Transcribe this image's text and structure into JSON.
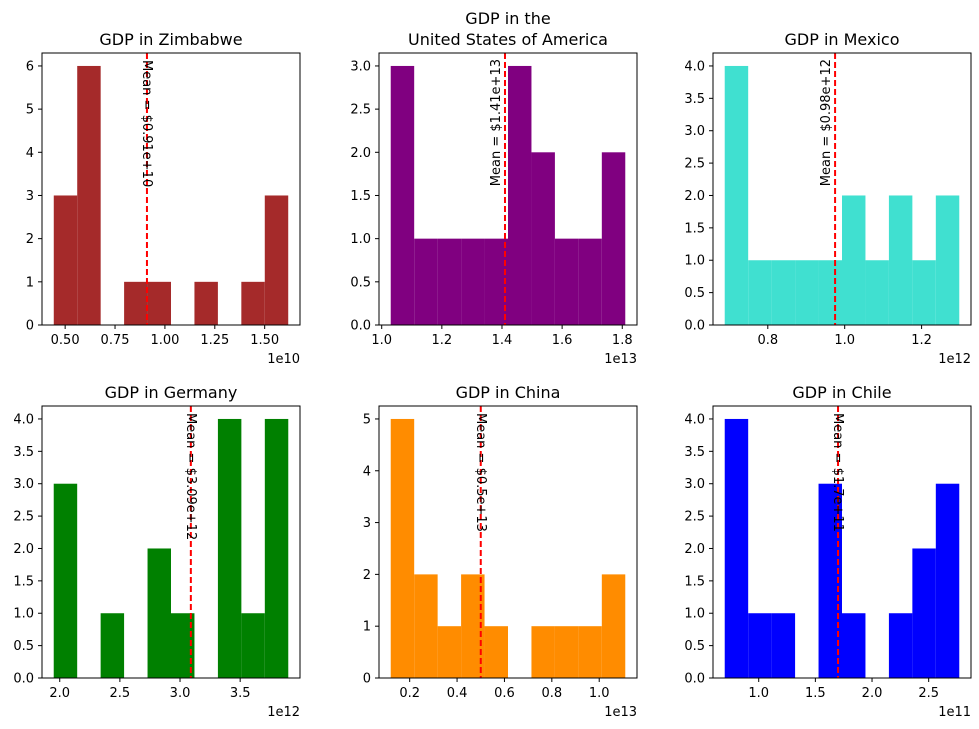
{
  "chart_data": [
    {
      "type": "bar",
      "title": "GDP in Zimbabwe",
      "color": "#a52a2a",
      "x_offset": "1e10",
      "bins": [
        {
          "x0": 0.443,
          "x1": 0.5605,
          "count": 3
        },
        {
          "x0": 0.5605,
          "x1": 0.678,
          "count": 6
        },
        {
          "x0": 0.678,
          "x1": 0.7955,
          "count": 0
        },
        {
          "x0": 0.7955,
          "x1": 0.913,
          "count": 1
        },
        {
          "x0": 0.913,
          "x1": 1.0305,
          "count": 1
        },
        {
          "x0": 1.0305,
          "x1": 1.148,
          "count": 0
        },
        {
          "x0": 1.148,
          "x1": 1.2655,
          "count": 1
        },
        {
          "x0": 1.2655,
          "x1": 1.383,
          "count": 0
        },
        {
          "x0": 1.383,
          "x1": 1.5005,
          "count": 1
        },
        {
          "x0": 1.5005,
          "x1": 1.618,
          "count": 3
        }
      ],
      "mean": 0.91,
      "mean_label": "Mean = $0.91e+10",
      "xlim": [
        0.384,
        1.677
      ],
      "ylim": [
        0,
        6.3
      ],
      "xticks": [
        0.5,
        0.75,
        1.0,
        1.25,
        1.5
      ],
      "xtick_labels": [
        "0.50",
        "0.75",
        "1.00",
        "1.25",
        "1.50"
      ],
      "yticks": [
        0,
        1,
        2,
        3,
        4,
        5,
        6
      ],
      "ytick_labels": [
        "0",
        "1",
        "2",
        "3",
        "4",
        "5",
        "6"
      ]
    },
    {
      "type": "bar",
      "title": "GDP in the\nUnited States of America",
      "color": "#800080",
      "x_offset": "1e13",
      "bins": [
        {
          "x0": 1.03,
          "x1": 1.108,
          "count": 3
        },
        {
          "x0": 1.108,
          "x1": 1.186,
          "count": 1
        },
        {
          "x0": 1.186,
          "x1": 1.264,
          "count": 1
        },
        {
          "x0": 1.264,
          "x1": 1.342,
          "count": 1
        },
        {
          "x0": 1.342,
          "x1": 1.42,
          "count": 1
        },
        {
          "x0": 1.42,
          "x1": 1.498,
          "count": 3
        },
        {
          "x0": 1.498,
          "x1": 1.576,
          "count": 2
        },
        {
          "x0": 1.576,
          "x1": 1.654,
          "count": 1
        },
        {
          "x0": 1.654,
          "x1": 1.732,
          "count": 1
        },
        {
          "x0": 1.732,
          "x1": 1.81,
          "count": 2
        }
      ],
      "mean": 1.41,
      "mean_label": "Mean = $1.41e+13",
      "xlim": [
        0.991,
        1.849
      ],
      "ylim": [
        0,
        3.15
      ],
      "xticks": [
        1.0,
        1.2,
        1.4,
        1.6,
        1.8
      ],
      "xtick_labels": [
        "1.0",
        "1.2",
        "1.4",
        "1.6",
        "1.8"
      ],
      "yticks": [
        0,
        0.5,
        1,
        1.5,
        2,
        2.5,
        3
      ],
      "ytick_labels": [
        "0.0",
        "0.5",
        "1.0",
        "1.5",
        "2.0",
        "2.5",
        "3.0"
      ]
    },
    {
      "type": "bar",
      "title": "GDP in Mexico",
      "color": "#40e0d0",
      "x_offset": "1e12",
      "bins": [
        {
          "x0": 0.688,
          "x1": 0.749,
          "count": 4
        },
        {
          "x0": 0.749,
          "x1": 0.81,
          "count": 1
        },
        {
          "x0": 0.81,
          "x1": 0.871,
          "count": 1
        },
        {
          "x0": 0.871,
          "x1": 0.932,
          "count": 1
        },
        {
          "x0": 0.932,
          "x1": 0.993,
          "count": 1
        },
        {
          "x0": 0.993,
          "x1": 1.054,
          "count": 2
        },
        {
          "x0": 1.054,
          "x1": 1.115,
          "count": 1
        },
        {
          "x0": 1.115,
          "x1": 1.176,
          "count": 2
        },
        {
          "x0": 1.176,
          "x1": 1.237,
          "count": 1
        },
        {
          "x0": 1.237,
          "x1": 1.298,
          "count": 2
        }
      ],
      "mean": 0.975,
      "mean_label": "Mean = $0.98e+12",
      "xlim": [
        0.6575,
        1.3285
      ],
      "ylim": [
        0,
        4.2
      ],
      "xticks": [
        0.8,
        1.0,
        1.2
      ],
      "xtick_labels": [
        "0.8",
        "1.0",
        "1.2"
      ],
      "yticks": [
        0,
        0.5,
        1,
        1.5,
        2,
        2.5,
        3,
        3.5,
        4
      ],
      "ytick_labels": [
        "0.0",
        "0.5",
        "1.0",
        "1.5",
        "2.0",
        "2.5",
        "3.0",
        "3.5",
        "4.0"
      ]
    },
    {
      "type": "bar",
      "title": "GDP in Germany",
      "color": "#008000",
      "x_offset": "1e12",
      "bins": [
        {
          "x0": 1.95,
          "x1": 2.145,
          "count": 3
        },
        {
          "x0": 2.145,
          "x1": 2.34,
          "count": 0
        },
        {
          "x0": 2.34,
          "x1": 2.535,
          "count": 1
        },
        {
          "x0": 2.535,
          "x1": 2.73,
          "count": 0
        },
        {
          "x0": 2.73,
          "x1": 2.925,
          "count": 2
        },
        {
          "x0": 2.925,
          "x1": 3.12,
          "count": 1
        },
        {
          "x0": 3.12,
          "x1": 3.315,
          "count": 0
        },
        {
          "x0": 3.315,
          "x1": 3.51,
          "count": 4
        },
        {
          "x0": 3.51,
          "x1": 3.705,
          "count": 1
        },
        {
          "x0": 3.705,
          "x1": 3.9,
          "count": 4
        }
      ],
      "mean": 3.09,
      "mean_label": "Mean = $3.09e+12",
      "xlim": [
        1.8525,
        3.9975
      ],
      "ylim": [
        0,
        4.2
      ],
      "xticks": [
        2.0,
        2.5,
        3.0,
        3.5
      ],
      "xtick_labels": [
        "2.0",
        "2.5",
        "3.0",
        "3.5"
      ],
      "yticks": [
        0,
        0.5,
        1,
        1.5,
        2,
        2.5,
        3,
        3.5,
        4
      ],
      "ytick_labels": [
        "0.0",
        "0.5",
        "1.0",
        "1.5",
        "2.0",
        "2.5",
        "3.0",
        "3.5",
        "4.0"
      ]
    },
    {
      "type": "bar",
      "title": "GDP in China",
      "color": "#ff8c00",
      "x_offset": "1e13",
      "bins": [
        {
          "x0": 0.12,
          "x1": 0.219,
          "count": 5
        },
        {
          "x0": 0.219,
          "x1": 0.318,
          "count": 2
        },
        {
          "x0": 0.318,
          "x1": 0.417,
          "count": 1
        },
        {
          "x0": 0.417,
          "x1": 0.516,
          "count": 2
        },
        {
          "x0": 0.516,
          "x1": 0.615,
          "count": 1
        },
        {
          "x0": 0.615,
          "x1": 0.714,
          "count": 0
        },
        {
          "x0": 0.714,
          "x1": 0.813,
          "count": 1
        },
        {
          "x0": 0.813,
          "x1": 0.912,
          "count": 1
        },
        {
          "x0": 0.912,
          "x1": 1.011,
          "count": 1
        },
        {
          "x0": 1.011,
          "x1": 1.11,
          "count": 2
        }
      ],
      "mean": 0.5,
      "mean_label": "Mean = $0.5e+13",
      "xlim": [
        0.0705,
        1.1595
      ],
      "ylim": [
        0,
        5.25
      ],
      "xticks": [
        0.2,
        0.4,
        0.6,
        0.8,
        1.0
      ],
      "xtick_labels": [
        "0.2",
        "0.4",
        "0.6",
        "0.8",
        "1.0"
      ],
      "yticks": [
        0,
        1,
        2,
        3,
        4,
        5
      ],
      "ytick_labels": [
        "0",
        "1",
        "2",
        "3",
        "4",
        "5"
      ]
    },
    {
      "type": "bar",
      "title": "GDP in Chile",
      "color": "#0000ff",
      "x_offset": "1e11",
      "bins": [
        {
          "x0": 0.7,
          "x1": 0.907,
          "count": 4
        },
        {
          "x0": 0.907,
          "x1": 1.114,
          "count": 1
        },
        {
          "x0": 1.114,
          "x1": 1.321,
          "count": 1
        },
        {
          "x0": 1.321,
          "x1": 1.528,
          "count": 0
        },
        {
          "x0": 1.528,
          "x1": 1.735,
          "count": 3
        },
        {
          "x0": 1.735,
          "x1": 1.942,
          "count": 1
        },
        {
          "x0": 1.942,
          "x1": 2.149,
          "count": 0
        },
        {
          "x0": 2.149,
          "x1": 2.356,
          "count": 1
        },
        {
          "x0": 2.356,
          "x1": 2.563,
          "count": 2
        },
        {
          "x0": 2.563,
          "x1": 2.77,
          "count": 3
        }
      ],
      "mean": 1.7,
      "mean_label": "Mean = $1.7e+11",
      "xlim": [
        0.5965,
        2.8735
      ],
      "ylim": [
        0,
        4.2
      ],
      "xticks": [
        1.0,
        1.5,
        2.0,
        2.5
      ],
      "xtick_labels": [
        "1.0",
        "1.5",
        "2.0",
        "2.5"
      ],
      "yticks": [
        0,
        0.5,
        1,
        1.5,
        2,
        2.5,
        3,
        3.5,
        4
      ],
      "ytick_labels": [
        "0.0",
        "0.5",
        "1.0",
        "1.5",
        "2.0",
        "2.5",
        "3.0",
        "3.5",
        "4.0"
      ]
    }
  ]
}
